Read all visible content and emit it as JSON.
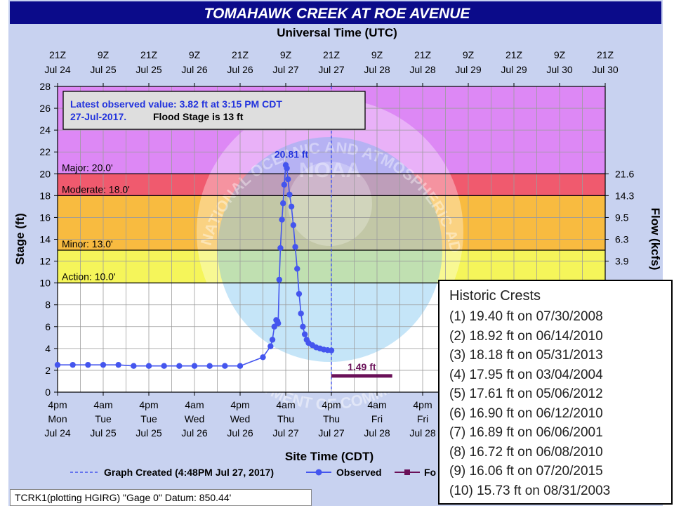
{
  "chart_data": {
    "type": "line",
    "title": "TOMAHAWK CREEK AT ROE AVENUE",
    "top_axis_label": "Universal Time (UTC)",
    "xlabel": "Site Time (CDT)",
    "ylabel": "Stage (ft)",
    "y2label": "Flow (kcfs)",
    "ylim": [
      0,
      28
    ],
    "y_ticks": [
      "0",
      "2",
      "4",
      "6",
      "8",
      "10",
      "12",
      "14",
      "16",
      "18",
      "20",
      "22",
      "24",
      "26",
      "28"
    ],
    "y2_ticks": [
      "3.9",
      "6.3",
      "9.5",
      "14.3",
      "21.6"
    ],
    "y2_tick_stage": [
      12,
      14,
      16,
      18,
      20
    ],
    "x_hours_range": [
      0,
      144
    ],
    "top_ticks": [
      {
        "h": 0,
        "l1": "21Z",
        "l2": "Jul 24"
      },
      {
        "h": 12,
        "l1": "9Z",
        "l2": "Jul 25"
      },
      {
        "h": 24,
        "l1": "21Z",
        "l2": "Jul 25"
      },
      {
        "h": 36,
        "l1": "9Z",
        "l2": "Jul 26"
      },
      {
        "h": 48,
        "l1": "21Z",
        "l2": "Jul 26"
      },
      {
        "h": 60,
        "l1": "9Z",
        "l2": "Jul 27"
      },
      {
        "h": 72,
        "l1": "21Z",
        "l2": "Jul 27"
      },
      {
        "h": 84,
        "l1": "9Z",
        "l2": "Jul 28"
      },
      {
        "h": 96,
        "l1": "21Z",
        "l2": "Jul 28"
      },
      {
        "h": 108,
        "l1": "9Z",
        "l2": "Jul 29"
      },
      {
        "h": 120,
        "l1": "21Z",
        "l2": "Jul 29"
      },
      {
        "h": 132,
        "l1": "9Z",
        "l2": "Jul 30"
      },
      {
        "h": 144,
        "l1": "21Z",
        "l2": "Jul 30"
      }
    ],
    "bottom_ticks": [
      {
        "h": 0,
        "l1": "4pm",
        "l2": "Mon",
        "l3": "Jul 24"
      },
      {
        "h": 12,
        "l1": "4am",
        "l2": "Tue",
        "l3": "Jul 25"
      },
      {
        "h": 24,
        "l1": "4pm",
        "l2": "Tue",
        "l3": "Jul 25"
      },
      {
        "h": 36,
        "l1": "4am",
        "l2": "Wed",
        "l3": "Jul 26"
      },
      {
        "h": 48,
        "l1": "4pm",
        "l2": "Wed",
        "l3": "Jul 26"
      },
      {
        "h": 60,
        "l1": "4am",
        "l2": "Thu",
        "l3": "Jul 27"
      },
      {
        "h": 72,
        "l1": "4pm",
        "l2": "Thu",
        "l3": "Jul 27"
      },
      {
        "h": 84,
        "l1": "4am",
        "l2": "Fri",
        "l3": "Jul 28"
      },
      {
        "h": 96,
        "l1": "4pm",
        "l2": "Fri",
        "l3": "Jul 28"
      }
    ],
    "flood_bands": [
      {
        "name": "Major",
        "from": 20,
        "to": 28,
        "color": "#dd88f5"
      },
      {
        "name": "Moderate",
        "from": 18,
        "to": 20,
        "color": "#f05a6e"
      },
      {
        "name": "Minor",
        "from": 13,
        "to": 18,
        "color": "#f8bb40"
      },
      {
        "name": "Action",
        "from": 10,
        "to": 13,
        "color": "#f5f55a"
      }
    ],
    "thresholds": [
      {
        "label": "Major: 20.0'",
        "value": 20
      },
      {
        "label": "Moderate: 18.0'",
        "value": 18
      },
      {
        "label": "Minor: 13.0'",
        "value": 13
      },
      {
        "label": "Action: 10.0'",
        "value": 10
      }
    ],
    "series": [
      {
        "name": "Observed",
        "color": "#4455ee",
        "x": [
          0,
          4,
          8,
          12,
          16,
          20,
          24,
          28,
          32,
          36,
          40,
          44,
          48,
          54,
          56,
          56.5,
          57,
          57.5,
          57.8,
          58,
          58.3,
          58.6,
          59,
          59.3,
          59.6,
          60,
          60.3,
          60.6,
          61,
          61.5,
          62,
          62.5,
          63,
          63.5,
          64,
          64.5,
          65,
          65.5,
          66,
          67,
          68,
          69,
          70,
          71,
          72
        ],
        "y": [
          2.5,
          2.5,
          2.5,
          2.5,
          2.5,
          2.4,
          2.4,
          2.4,
          2.4,
          2.4,
          2.4,
          2.4,
          2.4,
          3.2,
          4.2,
          4.8,
          6.0,
          6.6,
          6.5,
          6.3,
          10.3,
          13.2,
          15.8,
          17.3,
          19.0,
          20.8,
          20.5,
          19.5,
          18.1,
          17.0,
          15.3,
          13.3,
          11.3,
          9.0,
          7.2,
          6.0,
          5.3,
          4.8,
          4.5,
          4.3,
          4.1,
          4.0,
          3.9,
          3.85,
          3.82
        ]
      }
    ],
    "forecast": {
      "name": "Forecast",
      "color": "#6a1058",
      "x_start": 72,
      "x_end": 88,
      "value": 1.49,
      "label": "1.49 ft"
    },
    "peak_label": "20.81 ft",
    "peak_h": 60,
    "peak_value": 20.81,
    "graph_created_h": 72,
    "info_box": {
      "line1": "Latest observed value: 3.82 ft at 3:15 PM CDT",
      "line2_date": "27-Jul-2017.",
      "line2_rest": "Flood Stage is 13 ft"
    },
    "legend": {
      "graph_created": "Graph Created (4:48PM Jul 27, 2017)",
      "observed": "Observed",
      "forecast_trunc": "Fo"
    },
    "watermark": {
      "noaa_text": "NATIONAL OCEANIC AND ATMOSPHERIC ADMINISTRATION",
      "noaa": "NOAA",
      "doc": "U.S. DEPARTMENT OF COMMERCE"
    }
  },
  "historic_crests": {
    "title": "Historic Crests",
    "items": [
      "(1) 19.40 ft on 07/30/2008",
      "(2) 18.92 ft on 06/14/2010",
      "(3) 18.18 ft on 05/31/2013",
      "(4) 17.95 ft on 03/04/2004",
      "(5) 17.61 ft on 05/06/2012",
      "(6) 16.90 ft on 06/12/2010",
      "(7) 16.89 ft on 06/06/2001",
      "(8) 16.72 ft on 06/08/2010",
      "(9) 16.06 ft on 07/20/2015",
      "(10) 15.73 ft on 08/31/2003"
    ]
  },
  "footer": "TCRK1(plotting HGIRG) \"Gage 0\" Datum: 850.44'"
}
